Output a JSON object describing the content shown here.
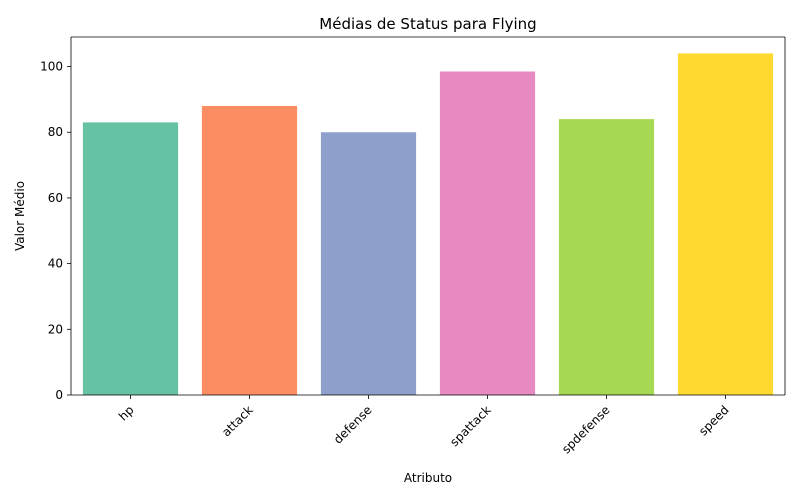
{
  "chart_data": {
    "type": "bar",
    "title": "Médias de Status para Flying",
    "xlabel": "Atributo",
    "ylabel": "Valor Médio",
    "categories": [
      "hp",
      "attack",
      "defense",
      "spattack",
      "spdefense",
      "speed"
    ],
    "values": [
      83,
      88,
      80,
      98.5,
      84,
      104
    ],
    "ylim": [
      0,
      109
    ],
    "yticks": [
      0,
      20,
      40,
      60,
      80,
      100
    ],
    "colors": [
      "#66c2a5",
      "#fc8d62",
      "#8da0cb",
      "#e78ac3",
      "#a6d854",
      "#ffd92f"
    ],
    "grid": false,
    "legend": "none"
  }
}
